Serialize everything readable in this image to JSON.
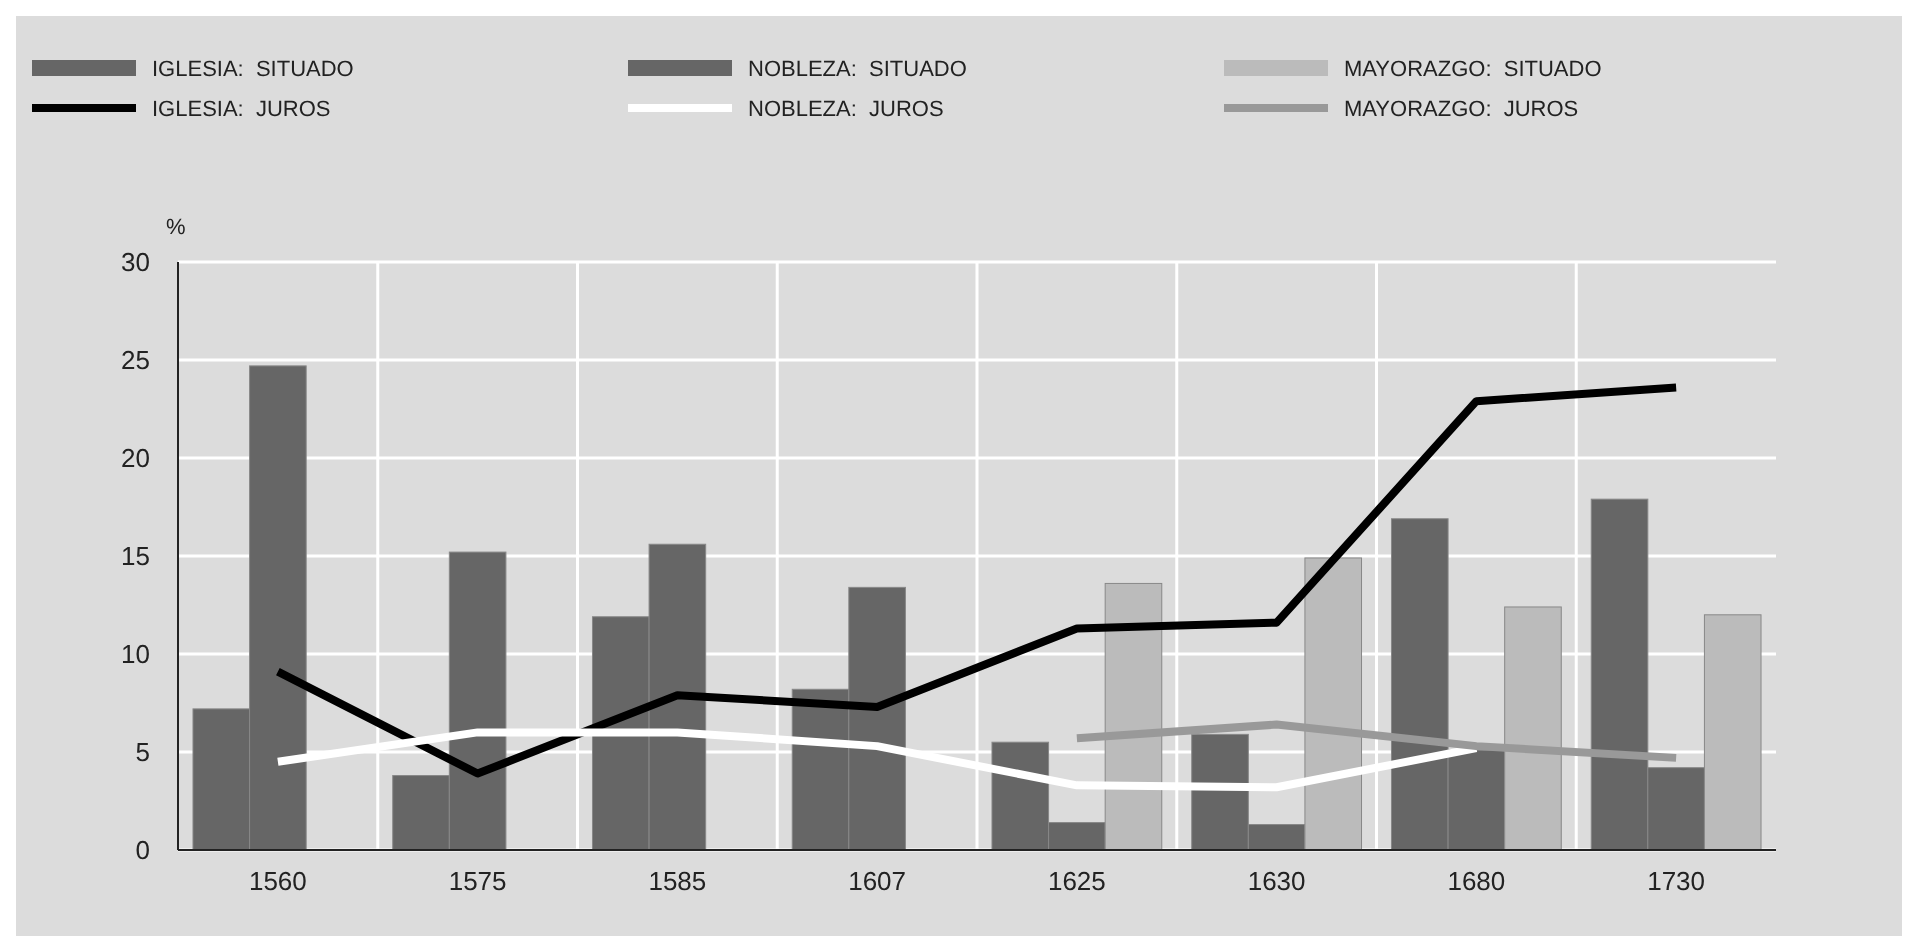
{
  "chart_data": {
    "type": "bar",
    "ylabel": "%",
    "categories": [
      "1560",
      "1575",
      "1585",
      "1607",
      "1625",
      "1630",
      "1680",
      "1730"
    ],
    "series": [
      {
        "name": "IGLESIA:  SITUADO",
        "color": "#666666",
        "values": [
          7.2,
          3.8,
          11.9,
          8.2,
          5.5,
          5.9,
          16.9,
          17.9
        ]
      },
      {
        "name": "NOBLEZA:  SITUADO",
        "color": "#666666",
        "values": [
          24.7,
          15.2,
          15.6,
          13.4,
          1.4,
          1.3,
          5.1,
          4.2
        ]
      },
      {
        "name": "MAYORAZGO:  SITUADO",
        "color": "#bbbbbb",
        "values": [
          null,
          null,
          null,
          null,
          13.6,
          14.9,
          12.4,
          12.0
        ]
      },
      {
        "name": "IGLESIA:  JUROS",
        "type": "line",
        "color": "#000000",
        "values": [
          9.1,
          3.9,
          7.9,
          7.3,
          11.3,
          11.6,
          22.9,
          23.6
        ]
      },
      {
        "name": "NOBLEZA:  JUROS",
        "type": "line",
        "color": "#ffffff",
        "values": [
          4.5,
          6.0,
          6.0,
          5.3,
          3.3,
          3.2,
          5.2,
          null
        ]
      },
      {
        "name": "MAYORAZGO:  JUROS",
        "type": "line",
        "color": "#999999",
        "values": [
          null,
          null,
          null,
          null,
          5.7,
          6.4,
          5.3,
          4.7
        ]
      }
    ],
    "ylim": [
      0,
      30
    ],
    "yticks": [
      0,
      5,
      10,
      15,
      20,
      25,
      30
    ],
    "grid": true,
    "legend": "top",
    "line_style": "solid"
  }
}
